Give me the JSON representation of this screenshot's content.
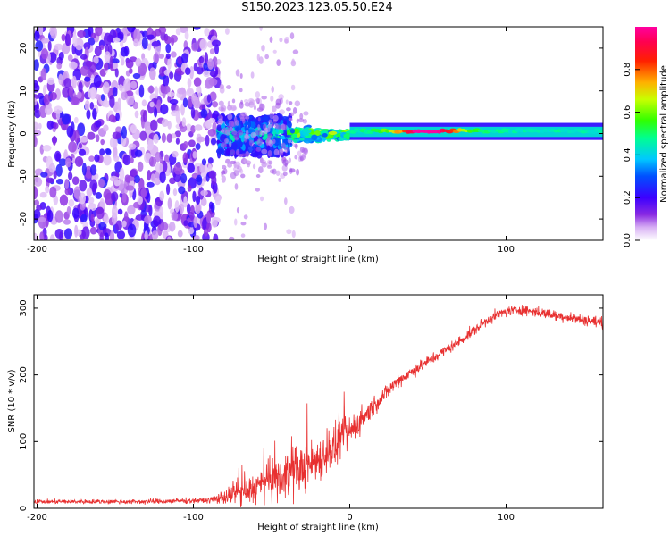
{
  "title": "S150.2023.123.05.50.E24",
  "chart_data": [
    {
      "type": "heatmap",
      "xlabel": "Height of straight line (km)",
      "ylabel": "Frequency (Hz)",
      "xlim": [
        -202,
        162
      ],
      "ylim": [
        -25,
        25
      ],
      "x_ticks": [
        -200,
        -100,
        0,
        100
      ],
      "y_ticks": [
        -20,
        -10,
        0,
        10,
        20
      ],
      "colorbar": {
        "label": "Normalized spectral amplitude",
        "range": [
          0,
          1
        ],
        "ticks": [
          0.0,
          0.2,
          0.4,
          0.6,
          0.8
        ],
        "colormap": "rainbow (white-purple-blue-cyan-green-yellow-red-magenta)"
      },
      "regions": [
        {
          "x": [
            -202,
            -84
          ],
          "description": "scattered low-amplitude noise across full frequency range",
          "amplitude": [
            0.0,
            0.2
          ]
        },
        {
          "x": [
            -84,
            -38
          ],
          "freq": [
            -5,
            4
          ],
          "description": "broadband signal onset",
          "amplitude": [
            0.1,
            0.45
          ]
        },
        {
          "x": [
            -38,
            0
          ],
          "freq": [
            -2,
            2
          ],
          "description": "signal narrows toward 0 Hz",
          "amplitude": [
            0.2,
            0.6
          ]
        },
        {
          "x": [
            0,
            162
          ],
          "freq": [
            -1.5,
            2.5
          ],
          "description": "narrow band near 0 Hz, peak around 30-70 km",
          "amplitude": [
            0.3,
            0.9
          ]
        }
      ]
    },
    {
      "type": "line",
      "xlabel": "Height of straight line (km)",
      "ylabel": "SNR (10 * v/v)",
      "xlim": [
        -202,
        162
      ],
      "ylim": [
        0,
        320
      ],
      "x_ticks": [
        -200,
        -100,
        0,
        100
      ],
      "y_ticks": [
        0,
        100,
        200,
        300
      ],
      "color": "#e83030",
      "trend": {
        "x": [
          -202,
          -130,
          -90,
          -70,
          -50,
          -30,
          -10,
          10,
          30,
          50,
          70,
          90,
          100,
          110,
          130,
          162
        ],
        "y": [
          10,
          10,
          12,
          22,
          40,
          60,
          90,
          140,
          190,
          220,
          250,
          285,
          295,
          298,
          290,
          278
        ]
      },
      "noise": {
        "x": [
          -202,
          -90,
          -70,
          -40,
          -10,
          20,
          60,
          162
        ],
        "amplitude": [
          4,
          5,
          22,
          45,
          40,
          14,
          10,
          10
        ]
      }
    }
  ]
}
